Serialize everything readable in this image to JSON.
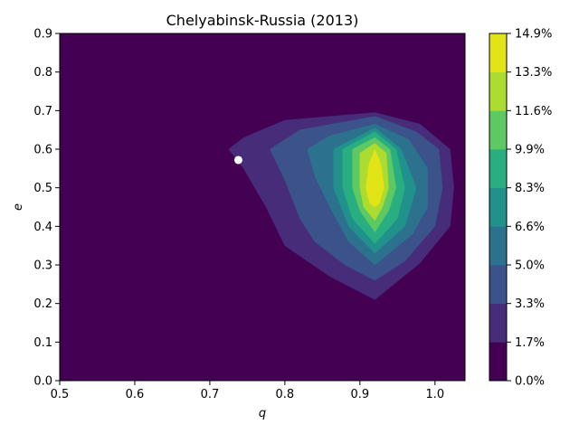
{
  "chart_data": {
    "type": "contour",
    "title": "Chelyabinsk-Russia (2013)",
    "xlabel": "q",
    "ylabel": "e",
    "xlim": [
      0.5,
      1.04
    ],
    "ylim": [
      0.0,
      0.9
    ],
    "xticks": [
      0.5,
      0.6,
      0.7,
      0.8,
      0.9,
      1.0
    ],
    "yticks": [
      0.0,
      0.1,
      0.2,
      0.3,
      0.4,
      0.5,
      0.6,
      0.7,
      0.8,
      0.9
    ],
    "xtick_labels": [
      "0.5",
      "0.6",
      "0.7",
      "0.8",
      "0.9",
      "1.0"
    ],
    "ytick_labels": [
      "0.0",
      "0.1",
      "0.2",
      "0.3",
      "0.4",
      "0.5",
      "0.6",
      "0.7",
      "0.8",
      "0.9"
    ],
    "grid": false,
    "colormap": "viridis",
    "peak": {
      "q": 0.92,
      "e": 0.5,
      "value_percent": 14.9
    },
    "colorbar": {
      "levels": [
        0.0,
        1.7,
        3.3,
        5.0,
        6.6,
        8.3,
        9.9,
        11.6,
        13.3,
        14.9
      ],
      "labels": [
        "0.0%",
        "1.7%",
        "3.3%",
        "5.0%",
        "6.6%",
        "8.3%",
        "9.9%",
        "11.6%",
        "13.3%",
        "14.9%"
      ],
      "colors": [
        "#440154",
        "#472c7a",
        "#3b528b",
        "#2c728e",
        "#21918c",
        "#28ae80",
        "#5ec962",
        "#addc30",
        "#e2e418"
      ]
    },
    "contours": [
      {
        "level": 1.7,
        "points": [
          [
            0.725,
            0.6
          ],
          [
            0.745,
            0.63
          ],
          [
            0.8,
            0.675
          ],
          [
            0.92,
            0.695
          ],
          [
            0.98,
            0.665
          ],
          [
            1.02,
            0.6
          ],
          [
            1.025,
            0.5
          ],
          [
            1.02,
            0.4
          ],
          [
            0.98,
            0.305
          ],
          [
            0.92,
            0.21
          ],
          [
            0.86,
            0.27
          ],
          [
            0.8,
            0.35
          ],
          [
            0.775,
            0.45
          ],
          [
            0.745,
            0.55
          ]
        ]
      },
      {
        "level": 3.3,
        "points": [
          [
            0.78,
            0.6
          ],
          [
            0.82,
            0.65
          ],
          [
            0.92,
            0.685
          ],
          [
            0.975,
            0.645
          ],
          [
            1.005,
            0.6
          ],
          [
            1.01,
            0.5
          ],
          [
            1.0,
            0.4
          ],
          [
            0.96,
            0.31
          ],
          [
            0.92,
            0.26
          ],
          [
            0.88,
            0.3
          ],
          [
            0.84,
            0.36
          ],
          [
            0.82,
            0.42
          ],
          [
            0.8,
            0.52
          ]
        ]
      },
      {
        "level": 5.0,
        "points": [
          [
            0.83,
            0.6
          ],
          [
            0.86,
            0.635
          ],
          [
            0.92,
            0.665
          ],
          [
            0.965,
            0.625
          ],
          [
            0.99,
            0.55
          ],
          [
            0.99,
            0.45
          ],
          [
            0.97,
            0.38
          ],
          [
            0.92,
            0.3
          ],
          [
            0.885,
            0.36
          ],
          [
            0.86,
            0.45
          ],
          [
            0.84,
            0.53
          ]
        ]
      },
      {
        "level": 6.6,
        "points": [
          [
            0.865,
            0.6
          ],
          [
            0.92,
            0.655
          ],
          [
            0.955,
            0.6
          ],
          [
            0.975,
            0.5
          ],
          [
            0.96,
            0.4
          ],
          [
            0.92,
            0.33
          ],
          [
            0.885,
            0.4
          ],
          [
            0.865,
            0.5
          ]
        ]
      },
      {
        "level": 8.3,
        "points": [
          [
            0.877,
            0.6
          ],
          [
            0.92,
            0.645
          ],
          [
            0.948,
            0.6
          ],
          [
            0.96,
            0.5
          ],
          [
            0.95,
            0.42
          ],
          [
            0.92,
            0.355
          ],
          [
            0.89,
            0.42
          ],
          [
            0.877,
            0.5
          ]
        ]
      },
      {
        "level": 9.9,
        "points": [
          [
            0.89,
            0.6
          ],
          [
            0.92,
            0.63
          ],
          [
            0.94,
            0.6
          ],
          [
            0.948,
            0.5
          ],
          [
            0.938,
            0.44
          ],
          [
            0.92,
            0.385
          ],
          [
            0.9,
            0.44
          ],
          [
            0.89,
            0.5
          ]
        ]
      },
      {
        "level": 11.6,
        "points": [
          [
            0.9,
            0.59
          ],
          [
            0.92,
            0.615
          ],
          [
            0.935,
            0.59
          ],
          [
            0.938,
            0.5
          ],
          [
            0.93,
            0.45
          ],
          [
            0.92,
            0.415
          ],
          [
            0.905,
            0.45
          ],
          [
            0.9,
            0.5
          ]
        ]
      },
      {
        "level": 13.3,
        "points": [
          [
            0.912,
            0.56
          ],
          [
            0.92,
            0.6
          ],
          [
            0.928,
            0.56
          ],
          [
            0.932,
            0.5
          ],
          [
            0.926,
            0.46
          ],
          [
            0.92,
            0.45
          ],
          [
            0.913,
            0.46
          ],
          [
            0.908,
            0.5
          ]
        ]
      }
    ],
    "marker": {
      "q": 0.738,
      "e": 0.572,
      "color": "#ffffff"
    }
  }
}
